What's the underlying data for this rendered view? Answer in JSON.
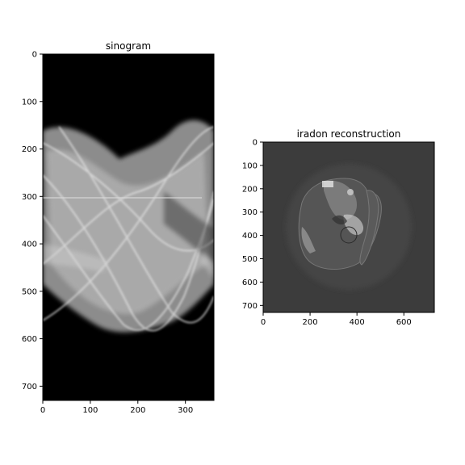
{
  "chart_data": [
    {
      "type": "heatmap",
      "title": "sinogram",
      "colormap": "gray",
      "xlim": [
        0,
        360
      ],
      "ylim": [
        730,
        0
      ],
      "xticks": [
        0,
        100,
        200,
        300
      ],
      "yticks": [
        0,
        100,
        200,
        300,
        400,
        500,
        600,
        700
      ],
      "content": "X-ray CT sinogram"
    },
    {
      "type": "heatmap",
      "title": "iradon reconstruction",
      "colormap": "gray",
      "xlim": [
        0,
        730
      ],
      "ylim": [
        730,
        0
      ],
      "xticks": [
        0,
        200,
        400,
        600
      ],
      "yticks": [
        0,
        100,
        200,
        300,
        400,
        500,
        600,
        700
      ],
      "content": "reconstructed cross-section"
    }
  ]
}
